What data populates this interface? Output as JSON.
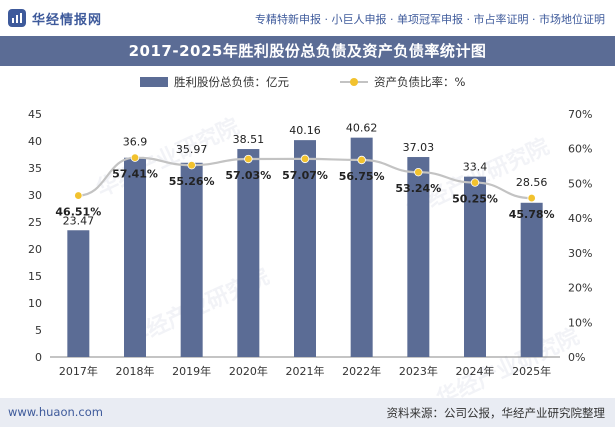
{
  "header": {
    "logo_text": "华经情报网",
    "links": "专精特新申报 · 小巨人申报 · 单项冠军申报 · 市占率证明 · 市场地位证明"
  },
  "title": "2017-2025年胜利股份总负债及资产负债率统计图",
  "watermark": "华经产业研究院",
  "footer": {
    "website": "www.huaon.com",
    "source": "资料来源：公司公报，华经产业研究院整理"
  },
  "colors": {
    "bar": "#5b6c95",
    "line": "#c3c3c3",
    "marker": "#f2c22e",
    "title_bg": "#5b6c95"
  },
  "chart_data": {
    "type": "bar",
    "categories": [
      "2017年",
      "2018年",
      "2019年",
      "2020年",
      "2021年",
      "2022年",
      "2023年",
      "2024年",
      "2025年"
    ],
    "series": [
      {
        "name": "胜利股份总负债：亿元",
        "type": "bar",
        "axis": "left",
        "values": [
          23.47,
          36.9,
          35.97,
          38.51,
          40.16,
          40.62,
          37.03,
          33.4,
          28.56
        ],
        "labels": [
          "23.47",
          "36.9",
          "35.97",
          "38.51",
          "40.16",
          "40.62",
          "37.03",
          "33.4",
          "28.56"
        ]
      },
      {
        "name": "资产负债比率：%",
        "type": "line",
        "axis": "right",
        "values": [
          46.51,
          57.41,
          55.26,
          57.03,
          57.07,
          56.75,
          53.24,
          50.25,
          45.78
        ],
        "labels": [
          "46.51%",
          "57.41%",
          "55.26%",
          "57.03%",
          "57.07%",
          "56.75%",
          "53.24%",
          "50.25%",
          "45.78%"
        ]
      }
    ],
    "y_left": {
      "ylim": [
        0,
        45
      ],
      "ticks": [
        "0",
        "5",
        "10",
        "15",
        "20",
        "25",
        "30",
        "35",
        "40",
        "45"
      ]
    },
    "y_right": {
      "ylim": [
        0,
        70
      ],
      "ticks": [
        "0%",
        "10%",
        "20%",
        "30%",
        "40%",
        "50%",
        "60%",
        "70%"
      ]
    },
    "legend_position": "top-center",
    "grid": false
  }
}
